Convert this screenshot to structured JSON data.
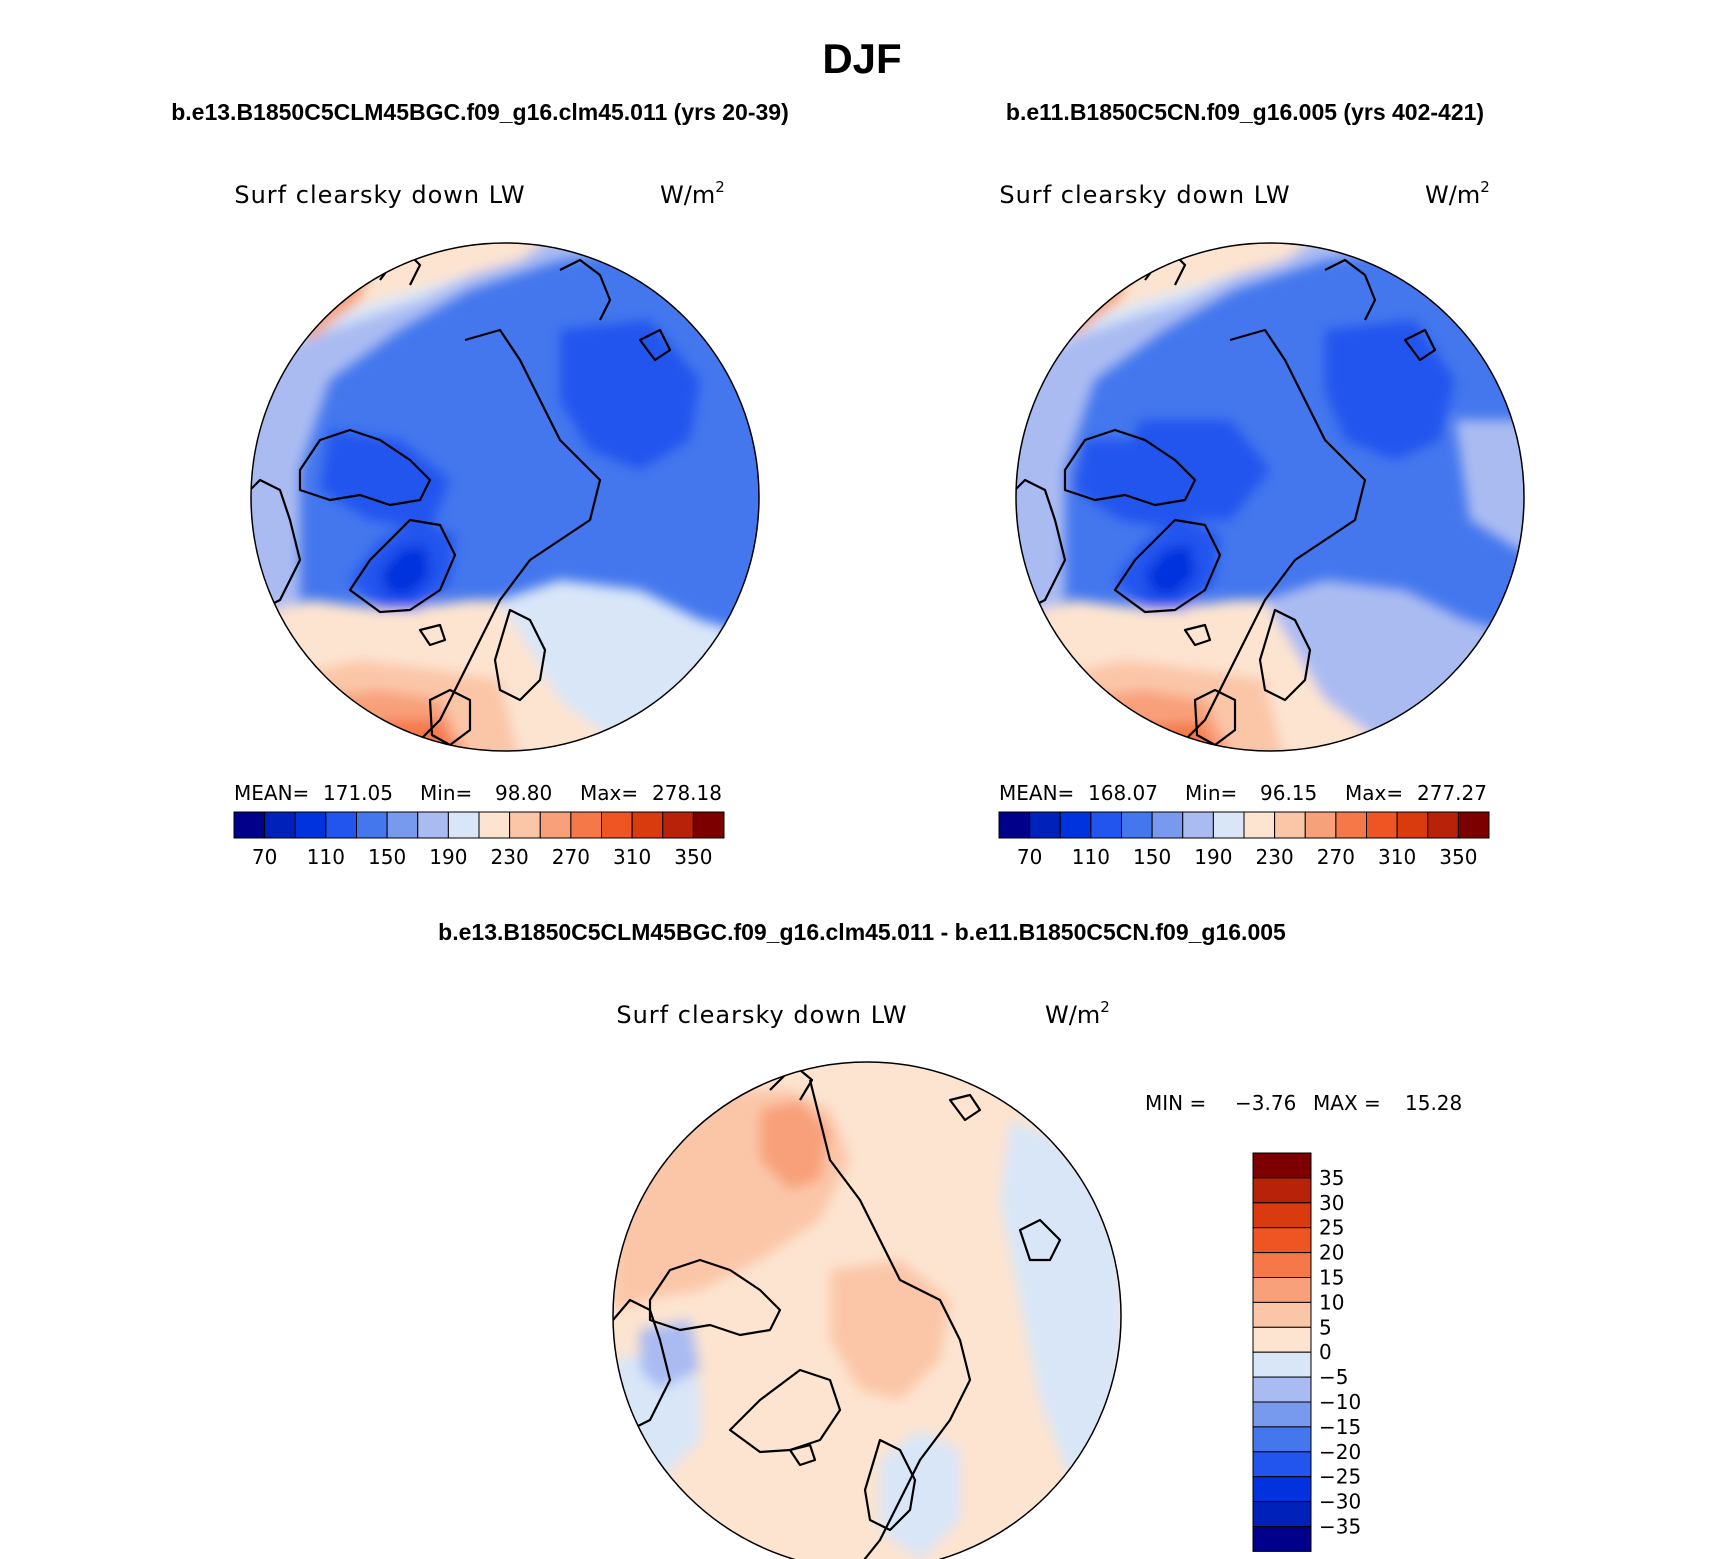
{
  "figure": {
    "season": "DJF",
    "panel_a": {
      "case_title": "b.e13.B1850C5CLM45BGC.f09_g16.clm45.011 (yrs 20-39)",
      "variable": "Surf clearsky down LW",
      "units": "W/m",
      "units_sup": "2",
      "stats": {
        "mean_label": "MEAN=",
        "mean": "171.05",
        "min_label": "Min=",
        "min": "98.80",
        "max_label": "Max=",
        "max": "278.18"
      }
    },
    "panel_b": {
      "case_title": "b.e11.B1850C5CN.f09_g16.005 (yrs 402-421)",
      "variable": "Surf clearsky down LW",
      "units": "W/m",
      "units_sup": "2",
      "stats": {
        "mean_label": "MEAN=",
        "mean": "168.07",
        "min_label": "Min=",
        "min": "96.15",
        "max_label": "Max=",
        "max": "277.27"
      }
    },
    "panel_diff": {
      "case_title": "b.e13.B1850C5CLM45BGC.f09_g16.clm45.011 - b.e11.B1850C5CN.f09_g16.005",
      "variable": "Surf clearsky down LW",
      "units": "W/m",
      "units_sup": "2",
      "minmax": {
        "min_label": "MIN =",
        "min": "−3.76",
        "max_label": "MAX =",
        "max": "15.28"
      }
    },
    "colorbar_abs": {
      "colors": [
        "#00008b",
        "#0022bb",
        "#0033dd",
        "#2255ee",
        "#4477ee",
        "#7799ee",
        "#aabbf2",
        "#d8e6f8",
        "#fde4d0",
        "#fbc6a8",
        "#f8a07a",
        "#f57848",
        "#ee5522",
        "#d93a0e",
        "#b82208",
        "#7d0000"
      ],
      "tick_labels": [
        "70",
        "110",
        "150",
        "190",
        "230",
        "270",
        "310",
        "350"
      ]
    },
    "colorbar_diff": {
      "colors": [
        "#00008b",
        "#0022bb",
        "#0033dd",
        "#2255ee",
        "#4477ee",
        "#7799ee",
        "#aabbf2",
        "#d8e6f8",
        "#fde4d0",
        "#fbc6a8",
        "#f8a07a",
        "#f57848",
        "#ee5522",
        "#d93a0e",
        "#b82208",
        "#7d0000"
      ],
      "tick_labels": [
        "35",
        "30",
        "25",
        "20",
        "15",
        "10",
        "5",
        "0",
        "−5",
        "−10",
        "−15",
        "−20",
        "−25",
        "−30",
        "−35"
      ]
    },
    "map_colors": {
      "ocean_edge_warm": "#fbc6a8",
      "atlantic_hot": "#f57848",
      "cold_core": "#2255ee",
      "very_cold": "#0033dd",
      "diff_background": "#fde4d0",
      "diff_warm": "#fbc6a8",
      "diff_cool": "#d8e6f8"
    }
  }
}
